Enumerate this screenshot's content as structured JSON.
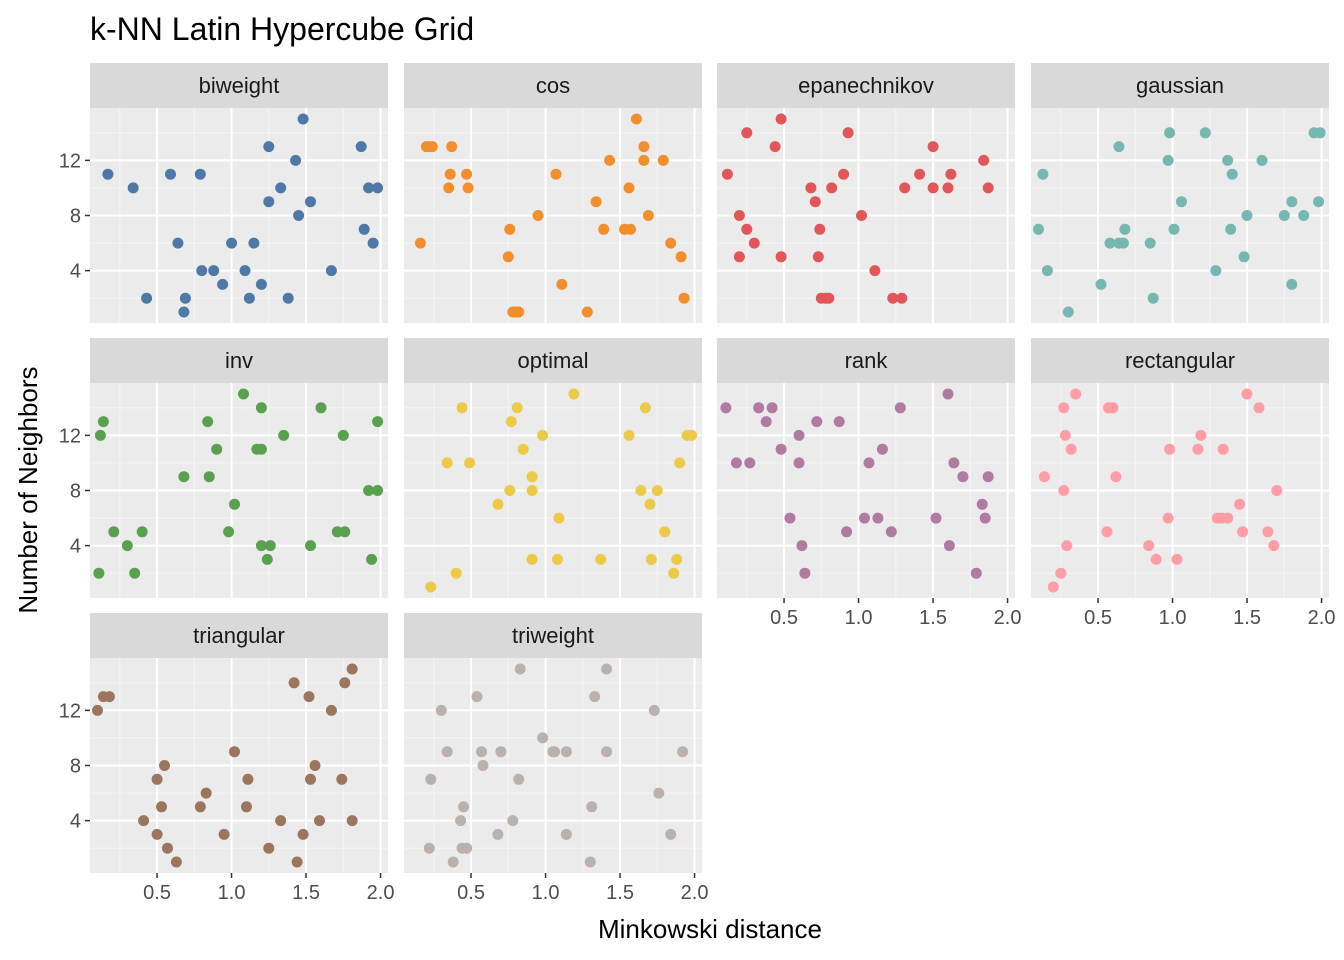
{
  "chart_data": {
    "type": "scatter",
    "title": "k-NN Latin Hypercube Grid",
    "xlabel": "Minkowski distance",
    "ylabel": "Number of Neighbors",
    "xlim": [
      0.05,
      2.05
    ],
    "ylim": [
      0.2,
      15.8
    ],
    "x_ticks": [
      0.5,
      1.0,
      1.5,
      2.0
    ],
    "x_tick_labels": [
      "0.5",
      "1.0",
      "1.5",
      "2.0"
    ],
    "y_ticks": [
      4,
      8,
      12
    ],
    "y_tick_labels": [
      "4",
      "8",
      "12"
    ],
    "grid": true,
    "facets": [
      {
        "name": "biweight",
        "color": "#4E79A7",
        "points": [
          [
            0.17,
            11
          ],
          [
            0.34,
            10
          ],
          [
            0.43,
            2
          ],
          [
            0.59,
            11
          ],
          [
            0.64,
            6
          ],
          [
            0.68,
            1
          ],
          [
            0.69,
            2
          ],
          [
            0.79,
            11
          ],
          [
            0.8,
            4
          ],
          [
            0.88,
            4
          ],
          [
            0.94,
            3
          ],
          [
            1.0,
            6
          ],
          [
            1.09,
            4
          ],
          [
            1.12,
            2
          ],
          [
            1.15,
            6
          ],
          [
            1.2,
            3
          ],
          [
            1.25,
            13
          ],
          [
            1.25,
            9
          ],
          [
            1.33,
            10
          ],
          [
            1.38,
            2
          ],
          [
            1.43,
            12
          ],
          [
            1.45,
            8
          ],
          [
            1.48,
            15
          ],
          [
            1.53,
            9
          ],
          [
            1.67,
            4
          ],
          [
            1.87,
            13
          ],
          [
            1.89,
            7
          ],
          [
            1.92,
            10
          ],
          [
            1.95,
            6
          ],
          [
            1.98,
            10
          ]
        ]
      },
      {
        "name": "cos",
        "color": "#F28E2B",
        "points": [
          [
            0.16,
            6
          ],
          [
            0.2,
            13
          ],
          [
            0.22,
            13
          ],
          [
            0.24,
            13
          ],
          [
            0.35,
            10
          ],
          [
            0.36,
            11
          ],
          [
            0.37,
            13
          ],
          [
            0.47,
            11
          ],
          [
            0.48,
            10
          ],
          [
            0.75,
            5
          ],
          [
            0.76,
            7
          ],
          [
            0.78,
            1
          ],
          [
            0.8,
            1
          ],
          [
            0.82,
            1
          ],
          [
            0.95,
            8
          ],
          [
            1.07,
            11
          ],
          [
            1.11,
            3
          ],
          [
            1.28,
            1
          ],
          [
            1.34,
            9
          ],
          [
            1.39,
            7
          ],
          [
            1.43,
            12
          ],
          [
            1.53,
            7
          ],
          [
            1.56,
            10
          ],
          [
            1.57,
            7
          ],
          [
            1.61,
            15
          ],
          [
            1.66,
            12
          ],
          [
            1.66,
            13
          ],
          [
            1.69,
            8
          ],
          [
            1.79,
            12
          ],
          [
            1.84,
            6
          ],
          [
            1.91,
            5
          ],
          [
            1.93,
            2
          ]
        ]
      },
      {
        "name": "epanechnikov",
        "color": "#E15759",
        "points": [
          [
            0.12,
            11
          ],
          [
            0.2,
            8
          ],
          [
            0.2,
            5
          ],
          [
            0.25,
            14
          ],
          [
            0.25,
            7
          ],
          [
            0.3,
            6
          ],
          [
            0.44,
            13
          ],
          [
            0.48,
            5
          ],
          [
            0.48,
            15
          ],
          [
            0.68,
            10
          ],
          [
            0.71,
            9
          ],
          [
            0.73,
            5
          ],
          [
            0.74,
            7
          ],
          [
            0.75,
            2
          ],
          [
            0.78,
            2
          ],
          [
            0.8,
            2
          ],
          [
            0.82,
            10
          ],
          [
            0.9,
            11
          ],
          [
            0.93,
            14
          ],
          [
            1.02,
            8
          ],
          [
            1.11,
            4
          ],
          [
            1.23,
            2
          ],
          [
            1.29,
            2
          ],
          [
            1.31,
            10
          ],
          [
            1.41,
            11
          ],
          [
            1.5,
            13
          ],
          [
            1.5,
            10
          ],
          [
            1.6,
            10
          ],
          [
            1.62,
            11
          ],
          [
            1.84,
            12
          ],
          [
            1.87,
            10
          ]
        ]
      },
      {
        "name": "gaussian",
        "color": "#76B7B2",
        "points": [
          [
            0.1,
            7
          ],
          [
            0.13,
            11
          ],
          [
            0.16,
            4
          ],
          [
            0.3,
            1
          ],
          [
            0.52,
            3
          ],
          [
            0.58,
            6
          ],
          [
            0.64,
            13
          ],
          [
            0.64,
            6
          ],
          [
            0.67,
            6
          ],
          [
            0.68,
            7
          ],
          [
            0.85,
            6
          ],
          [
            0.87,
            2
          ],
          [
            0.97,
            12
          ],
          [
            0.98,
            14
          ],
          [
            1.01,
            7
          ],
          [
            1.06,
            9
          ],
          [
            1.22,
            14
          ],
          [
            1.29,
            4
          ],
          [
            1.37,
            12
          ],
          [
            1.39,
            7
          ],
          [
            1.4,
            11
          ],
          [
            1.48,
            5
          ],
          [
            1.5,
            8
          ],
          [
            1.6,
            12
          ],
          [
            1.75,
            8
          ],
          [
            1.8,
            9
          ],
          [
            1.8,
            3
          ],
          [
            1.88,
            8
          ],
          [
            1.95,
            14
          ],
          [
            1.98,
            9
          ],
          [
            1.99,
            14
          ]
        ]
      },
      {
        "name": "inv",
        "color": "#59A14F",
        "points": [
          [
            0.11,
            2
          ],
          [
            0.12,
            12
          ],
          [
            0.14,
            13
          ],
          [
            0.21,
            5
          ],
          [
            0.3,
            4
          ],
          [
            0.35,
            2
          ],
          [
            0.4,
            5
          ],
          [
            0.68,
            9
          ],
          [
            0.84,
            13
          ],
          [
            0.85,
            9
          ],
          [
            0.9,
            11
          ],
          [
            0.98,
            5
          ],
          [
            1.02,
            7
          ],
          [
            1.08,
            15
          ],
          [
            1.17,
            11
          ],
          [
            1.2,
            11
          ],
          [
            1.2,
            14
          ],
          [
            1.2,
            4
          ],
          [
            1.24,
            3
          ],
          [
            1.26,
            4
          ],
          [
            1.35,
            12
          ],
          [
            1.53,
            4
          ],
          [
            1.6,
            14
          ],
          [
            1.71,
            5
          ],
          [
            1.76,
            5
          ],
          [
            1.75,
            12
          ],
          [
            1.92,
            8
          ],
          [
            1.94,
            3
          ],
          [
            1.98,
            8
          ],
          [
            1.98,
            13
          ]
        ]
      },
      {
        "name": "optimal",
        "color": "#EDC948",
        "points": [
          [
            0.23,
            1
          ],
          [
            0.34,
            10
          ],
          [
            0.4,
            2
          ],
          [
            0.44,
            14
          ],
          [
            0.49,
            10
          ],
          [
            0.68,
            7
          ],
          [
            0.76,
            8
          ],
          [
            0.77,
            13
          ],
          [
            0.81,
            14
          ],
          [
            0.85,
            11
          ],
          [
            0.91,
            9
          ],
          [
            0.91,
            3
          ],
          [
            0.91,
            8
          ],
          [
            0.98,
            12
          ],
          [
            1.08,
            3
          ],
          [
            1.09,
            6
          ],
          [
            1.19,
            15
          ],
          [
            1.37,
            3
          ],
          [
            1.56,
            12
          ],
          [
            1.64,
            8
          ],
          [
            1.67,
            14
          ],
          [
            1.7,
            7
          ],
          [
            1.71,
            3
          ],
          [
            1.75,
            8
          ],
          [
            1.8,
            5
          ],
          [
            1.86,
            2
          ],
          [
            1.88,
            3
          ],
          [
            1.9,
            10
          ],
          [
            1.95,
            12
          ],
          [
            1.98,
            12
          ]
        ]
      },
      {
        "name": "rank",
        "color": "#B07AA1",
        "points": [
          [
            0.11,
            14
          ],
          [
            0.18,
            10
          ],
          [
            0.27,
            10
          ],
          [
            0.33,
            14
          ],
          [
            0.38,
            13
          ],
          [
            0.42,
            14
          ],
          [
            0.48,
            11
          ],
          [
            0.54,
            6
          ],
          [
            0.6,
            12
          ],
          [
            0.62,
            4
          ],
          [
            0.64,
            2
          ],
          [
            0.6,
            10
          ],
          [
            0.72,
            13
          ],
          [
            0.87,
            13
          ],
          [
            0.92,
            5
          ],
          [
            1.04,
            6
          ],
          [
            1.07,
            10
          ],
          [
            1.13,
            6
          ],
          [
            1.16,
            11
          ],
          [
            1.22,
            5
          ],
          [
            1.28,
            14
          ],
          [
            1.52,
            6
          ],
          [
            1.6,
            15
          ],
          [
            1.61,
            4
          ],
          [
            1.64,
            10
          ],
          [
            1.7,
            9
          ],
          [
            1.79,
            2
          ],
          [
            1.83,
            7
          ],
          [
            1.85,
            6
          ],
          [
            1.87,
            9
          ]
        ]
      },
      {
        "name": "rectangular",
        "color": "#FF9DA7",
        "points": [
          [
            0.14,
            9
          ],
          [
            0.2,
            1
          ],
          [
            0.25,
            2
          ],
          [
            0.27,
            8
          ],
          [
            0.27,
            14
          ],
          [
            0.28,
            12
          ],
          [
            0.29,
            4
          ],
          [
            0.32,
            11
          ],
          [
            0.35,
            15
          ],
          [
            0.56,
            5
          ],
          [
            0.57,
            14
          ],
          [
            0.6,
            14
          ],
          [
            0.62,
            9
          ],
          [
            0.84,
            4
          ],
          [
            0.89,
            3
          ],
          [
            0.97,
            6
          ],
          [
            0.98,
            11
          ],
          [
            1.03,
            3
          ],
          [
            1.17,
            11
          ],
          [
            1.19,
            12
          ],
          [
            1.3,
            6
          ],
          [
            1.33,
            6
          ],
          [
            1.34,
            11
          ],
          [
            1.37,
            6
          ],
          [
            1.45,
            7
          ],
          [
            1.47,
            5
          ],
          [
            1.5,
            15
          ],
          [
            1.58,
            14
          ],
          [
            1.64,
            5
          ],
          [
            1.68,
            4
          ],
          [
            1.7,
            8
          ]
        ]
      },
      {
        "name": "triangular",
        "color": "#9C755F",
        "points": [
          [
            0.1,
            12
          ],
          [
            0.14,
            13
          ],
          [
            0.18,
            13
          ],
          [
            0.41,
            4
          ],
          [
            0.5,
            3
          ],
          [
            0.5,
            7
          ],
          [
            0.53,
            5
          ],
          [
            0.55,
            8
          ],
          [
            0.57,
            2
          ],
          [
            0.63,
            1
          ],
          [
            0.79,
            5
          ],
          [
            0.83,
            6
          ],
          [
            0.95,
            3
          ],
          [
            1.02,
            9
          ],
          [
            1.1,
            5
          ],
          [
            1.11,
            7
          ],
          [
            1.25,
            2
          ],
          [
            1.33,
            4
          ],
          [
            1.42,
            14
          ],
          [
            1.44,
            1
          ],
          [
            1.48,
            3
          ],
          [
            1.52,
            13
          ],
          [
            1.53,
            7
          ],
          [
            1.56,
            8
          ],
          [
            1.59,
            4
          ],
          [
            1.67,
            12
          ],
          [
            1.74,
            7
          ],
          [
            1.76,
            14
          ],
          [
            1.81,
            15
          ],
          [
            1.81,
            4
          ]
        ]
      },
      {
        "name": "triweight",
        "color": "#BAB0AC",
        "points": [
          [
            0.22,
            2
          ],
          [
            0.23,
            7
          ],
          [
            0.3,
            12
          ],
          [
            0.34,
            9
          ],
          [
            0.38,
            1
          ],
          [
            0.43,
            4
          ],
          [
            0.44,
            2
          ],
          [
            0.47,
            2
          ],
          [
            0.45,
            5
          ],
          [
            0.54,
            13
          ],
          [
            0.57,
            9
          ],
          [
            0.58,
            8
          ],
          [
            0.68,
            3
          ],
          [
            0.7,
            9
          ],
          [
            0.78,
            4
          ],
          [
            0.82,
            7
          ],
          [
            0.83,
            15
          ],
          [
            0.98,
            10
          ],
          [
            1.05,
            9
          ],
          [
            1.06,
            9
          ],
          [
            1.14,
            9
          ],
          [
            1.14,
            3
          ],
          [
            1.3,
            1
          ],
          [
            1.31,
            5
          ],
          [
            1.33,
            13
          ],
          [
            1.41,
            9
          ],
          [
            1.41,
            15
          ],
          [
            1.73,
            12
          ],
          [
            1.76,
            6
          ],
          [
            1.84,
            3
          ],
          [
            1.92,
            9
          ]
        ]
      }
    ]
  }
}
